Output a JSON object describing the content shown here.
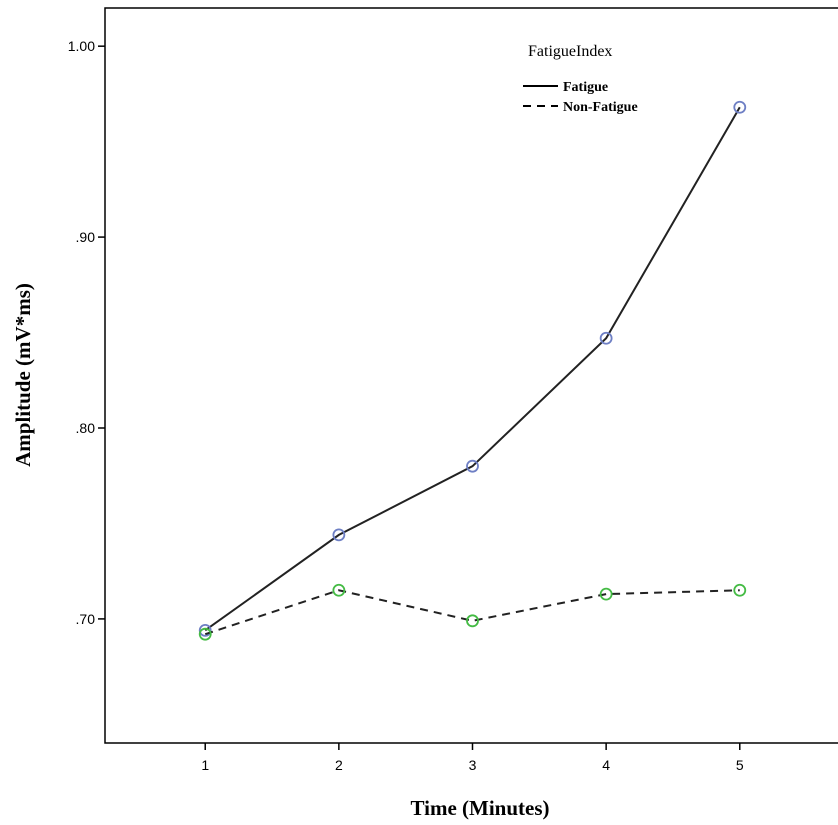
{
  "chart_data": {
    "type": "line",
    "xlabel": "Time (Minutes)",
    "ylabel": "Amplitude (mV*ms)",
    "categories": [
      "1",
      "2",
      "3",
      "4",
      "5"
    ],
    "x": [
      1,
      2,
      3,
      4,
      5
    ],
    "ylim": [
      0.635,
      1.02
    ],
    "xlim": [
      0.25,
      5.75
    ],
    "y_ticks": [
      0.7,
      0.8,
      0.9,
      1.0
    ],
    "y_tick_labels": [
      ".70",
      ".80",
      ".90",
      "1.00"
    ],
    "grid": false,
    "legend": {
      "title": "FatigueIndex",
      "placement": "top-right"
    },
    "series": [
      {
        "name": "Fatigue",
        "values": [
          0.694,
          0.744,
          0.78,
          0.847,
          0.968
        ],
        "line_style": "solid",
        "marker_color": "#6e7fc4"
      },
      {
        "name": "Non-Fatigue",
        "values": [
          0.692,
          0.715,
          0.699,
          0.713,
          0.715
        ],
        "line_style": "dashed",
        "marker_color": "#44bb44"
      }
    ]
  }
}
